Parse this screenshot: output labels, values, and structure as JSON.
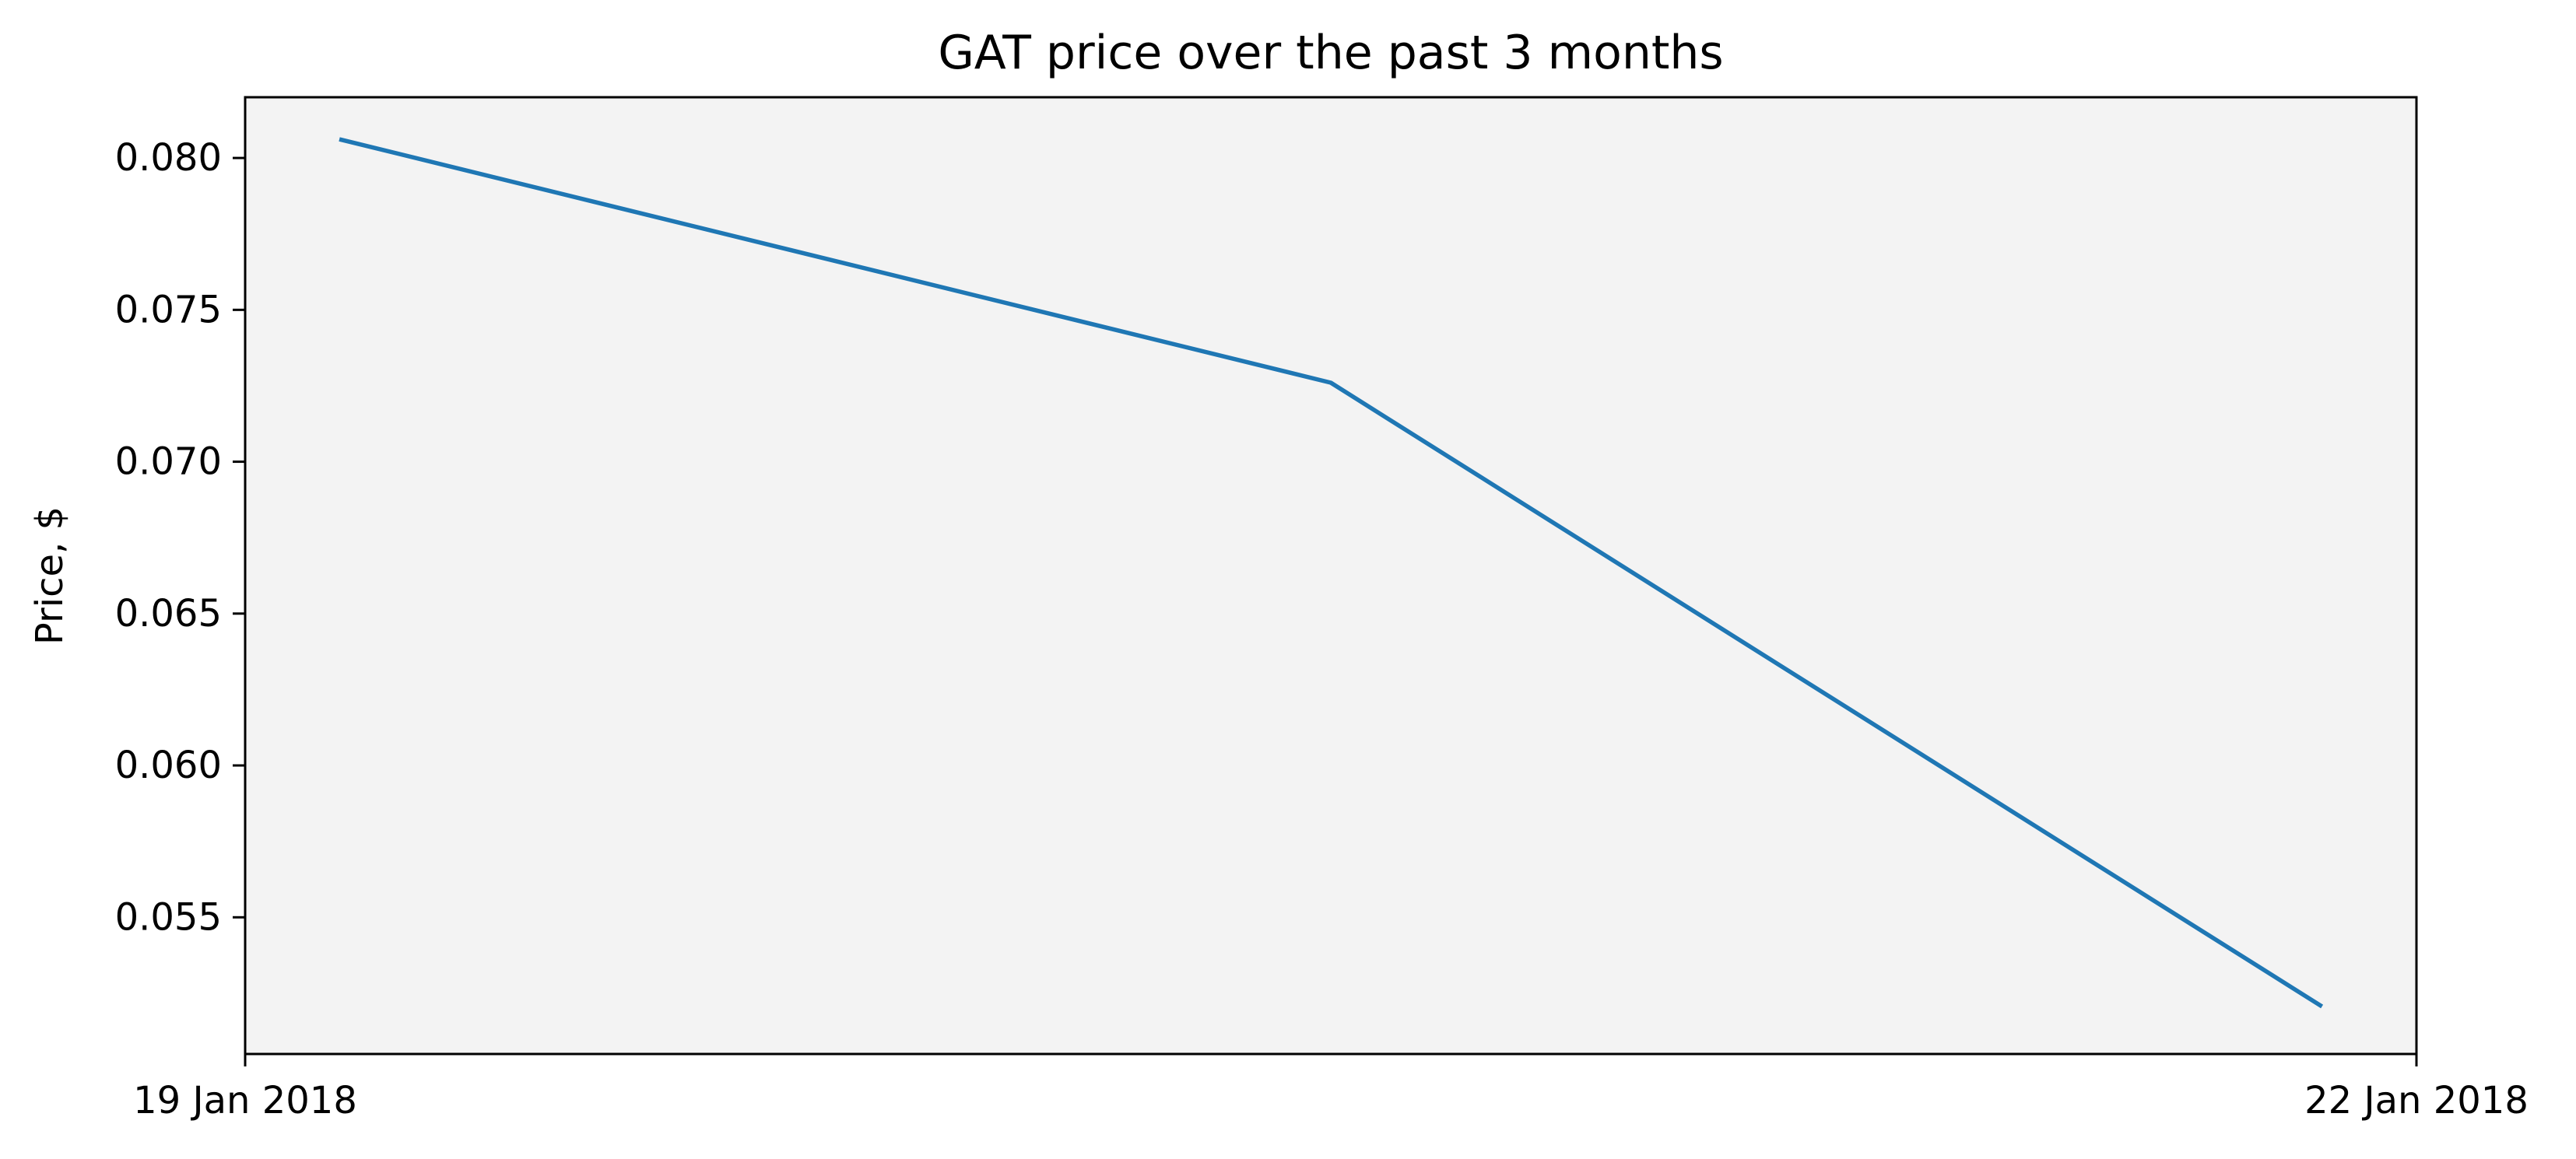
{
  "chart_data": {
    "type": "line",
    "title": "GAT price over the past 3 months",
    "xlabel": "",
    "ylabel": "Price, $",
    "xlim": [
      0,
      3
    ],
    "ylim": [
      0.0505,
      0.082
    ],
    "grid": false,
    "legend": "none",
    "x_ticks": [
      {
        "x": 0,
        "label": "19 Jan 2018"
      },
      {
        "x": 3,
        "label": "22 Jan 2018"
      }
    ],
    "y_ticks": [
      {
        "y": 0.08,
        "label": "0.080"
      },
      {
        "y": 0.075,
        "label": "0.075"
      },
      {
        "y": 0.07,
        "label": "0.070"
      },
      {
        "y": 0.065,
        "label": "0.065"
      },
      {
        "y": 0.06,
        "label": "0.060"
      },
      {
        "y": 0.055,
        "label": "0.055"
      }
    ],
    "series": [
      {
        "name": "GAT",
        "color": "#1f77b4",
        "x": [
          0.133,
          1.5,
          2.867
        ],
        "values": [
          0.0806,
          0.0726,
          0.0521
        ]
      }
    ]
  },
  "colors": {
    "plot_background": "#f3f3f3",
    "axis": "#000000"
  }
}
